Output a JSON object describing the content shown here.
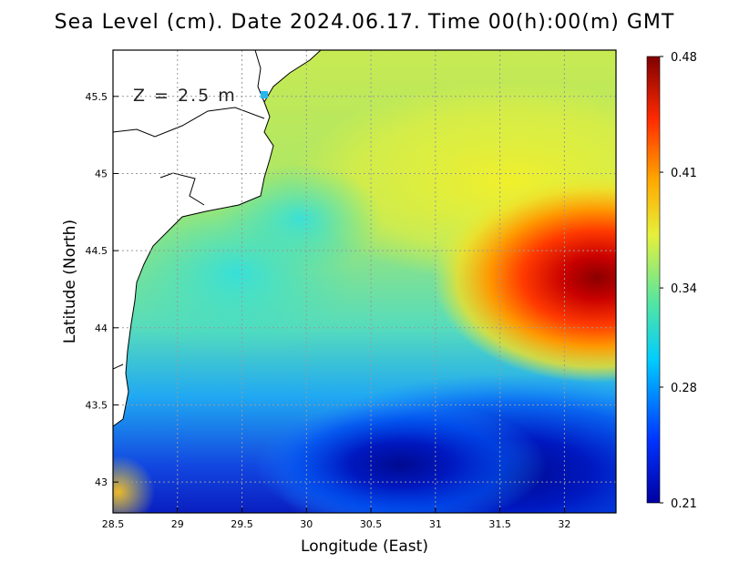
{
  "title": "Sea Level (cm). Date 2024.06.17. Time 00(h):00(m) GMT",
  "depth_label": "Z = 2.5 m",
  "chart_data": {
    "type": "heatmap",
    "variable": "Sea Level (cm)",
    "date": "2024.06.17",
    "time": "00(h):00(m) GMT",
    "xlabel": "Longitude (East)",
    "ylabel": "Latitude (North)",
    "xlim": [
      28.5,
      32.4
    ],
    "ylim": [
      42.8,
      45.8
    ],
    "xticks": [
      28.5,
      29,
      29.5,
      30,
      30.5,
      31,
      31.5,
      32
    ],
    "xtick_labels": [
      "28.5",
      "29",
      "29.5",
      "30",
      "30.5",
      "31",
      "31.5",
      "32"
    ],
    "yticks": [
      43,
      43.5,
      44,
      44.5,
      45,
      45.5
    ],
    "ytick_labels": [
      "43",
      "43.5",
      "44",
      "44.5",
      "45",
      "45.5"
    ],
    "grid": true,
    "colorbar": {
      "min": 0.21,
      "max": 0.48,
      "tick_values": [
        0.21,
        0.28,
        0.34,
        0.41,
        0.48
      ],
      "tick_labels": [
        "0.21",
        "0.28",
        "0.34",
        "0.41",
        "0.48"
      ],
      "colors": [
        "#0000a0",
        "#0033ff",
        "#00ccff",
        "#55e6a0",
        "#e6f03c",
        "#ffaa00",
        "#ff2a00",
        "#800000"
      ]
    },
    "features": [
      {
        "name": "high",
        "lon": 32.3,
        "lat": 44.3,
        "value": 0.48
      },
      {
        "name": "low",
        "lon": 31.8,
        "lat": 42.9,
        "value": 0.21
      }
    ],
    "land_color": "#ffffff",
    "coastline_color": "#000000"
  }
}
